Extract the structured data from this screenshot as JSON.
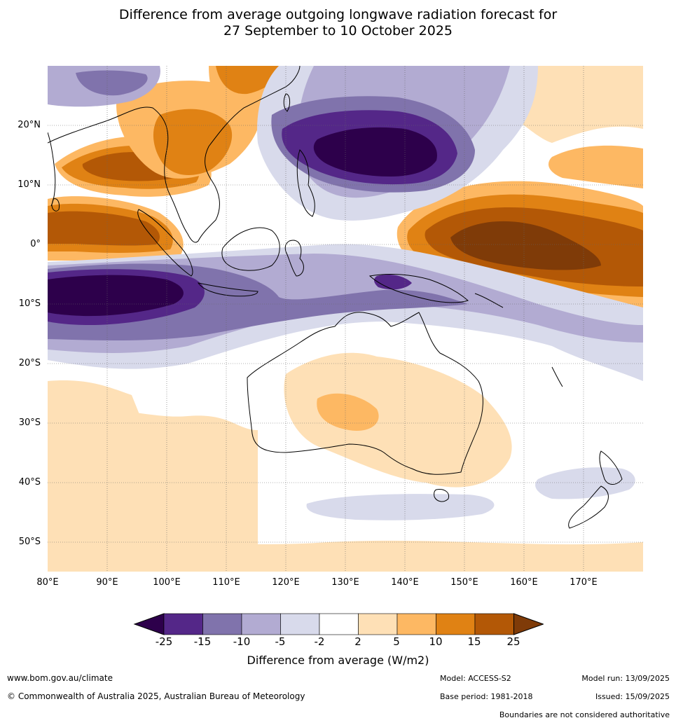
{
  "title": {
    "line1": "Difference from average outgoing longwave radiation forecast for",
    "line2": "27 September to 10 October 2025"
  },
  "axes": {
    "lat_labels": [
      "20°N",
      "10°N",
      "0°",
      "10°S",
      "20°S",
      "30°S",
      "40°S",
      "50°S"
    ],
    "lon_labels": [
      "80°E",
      "90°E",
      "100°E",
      "110°E",
      "120°E",
      "130°E",
      "140°E",
      "150°E",
      "160°E",
      "170°E"
    ]
  },
  "legend": {
    "ticks": [
      "-25",
      "-15",
      "-10",
      "-5",
      "-2",
      "2",
      "5",
      "10",
      "15",
      "25"
    ],
    "label": "Difference from average (W/m2)",
    "colors": [
      "#2d004b",
      "#542788",
      "#8073ac",
      "#b2abd2",
      "#d8daeb",
      "#ffffff",
      "#fee0b6",
      "#fdb863",
      "#e08214",
      "#b35806",
      "#7f3b08"
    ]
  },
  "footer": {
    "website": "www.bom.gov.au/climate",
    "copyright": "© Commonwealth of Australia 2025, Australian Bureau of Meteorology",
    "model": "Model: ACCESS-S2",
    "base_period": "Base period: 1981-2018",
    "model_run": "Model run: 13/09/2025",
    "issued": "Issued: 15/09/2025",
    "disclaimer": "Boundaries are not considered authoritative"
  }
}
